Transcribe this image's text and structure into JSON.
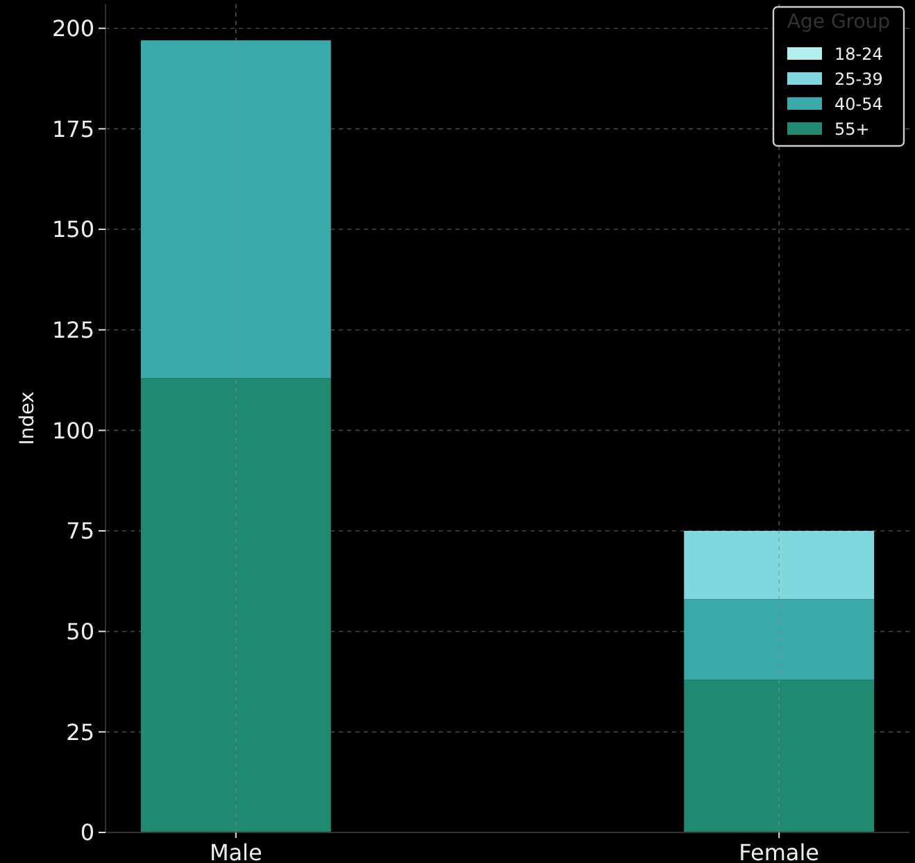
{
  "chart_data": {
    "type": "bar",
    "stacked": true,
    "ylabel": "Index",
    "legend_title": "Age Group",
    "categories": [
      "Male",
      "Female"
    ],
    "series": [
      {
        "name": "55+",
        "color": "#1f8a70",
        "values": [
          113,
          38
        ]
      },
      {
        "name": "40-54",
        "color": "#3aa9a9",
        "values": [
          84,
          20
        ]
      },
      {
        "name": "25-39",
        "color": "#7fd8de",
        "values": [
          0,
          17
        ]
      },
      {
        "name": "18-24",
        "color": "#b2f0f0",
        "values": [
          0,
          0
        ]
      }
    ],
    "ylim": [
      0,
      206
    ],
    "yticks": [
      0,
      25,
      50,
      75,
      100,
      125,
      150,
      175,
      200
    ],
    "grid": true,
    "legend": "top right"
  }
}
